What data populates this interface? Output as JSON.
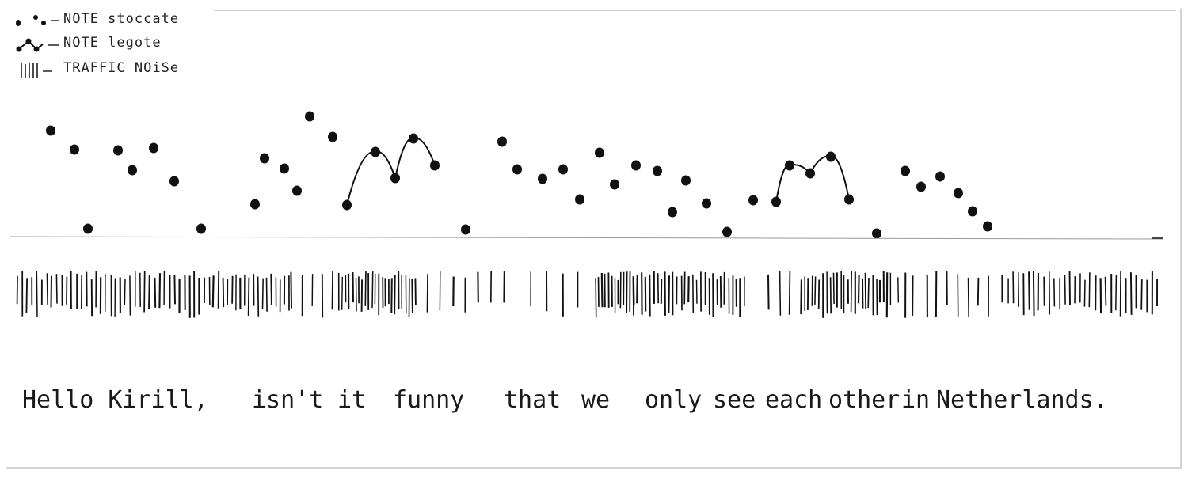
{
  "legend": {
    "staccato_label": "NOTE stoccate",
    "legato_label": "NOTE legote",
    "noise_label": "TRAFFIC NOiSe"
  },
  "notation": {
    "ink_color": "#111111",
    "paper_color": "#ffffff"
  },
  "message": {
    "w1": "Hello Kirill,",
    "w2": "isn't",
    "w3": "it",
    "w4": "funny",
    "w5": "that",
    "w6": "we",
    "w7": "only",
    "w8": "see",
    "w9": "each",
    "w10": "other",
    "w11": "in",
    "w12": "Netherlands."
  }
}
